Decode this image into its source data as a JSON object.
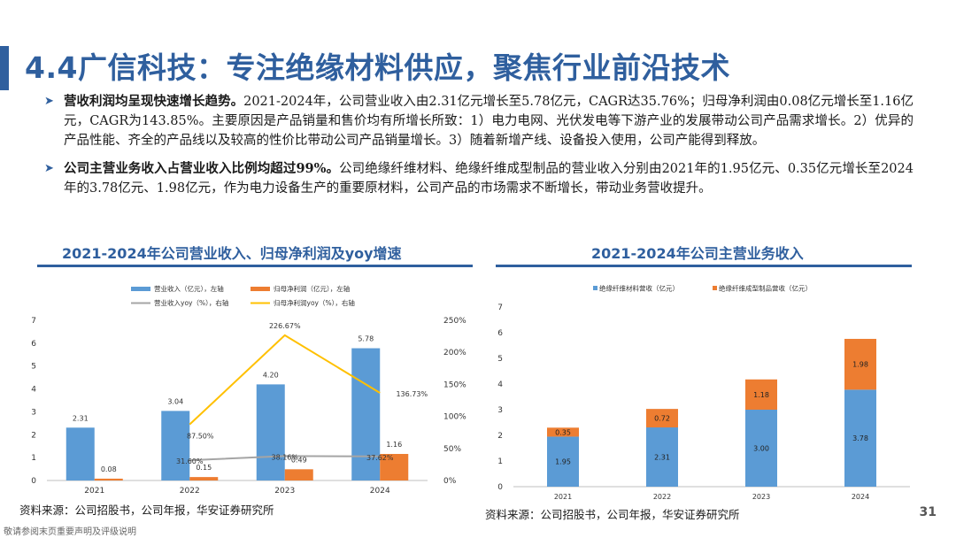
{
  "slide": {
    "title": "4.4广信科技：专注绝缘材料供应，聚焦行业前沿技术",
    "page_number": "31",
    "footer_note": "敬请参阅末页重要声明及评级说明"
  },
  "bullets": [
    {
      "head": "营收利润均呈现快速增长趋势。",
      "body": "2021-2024年，公司营业收入由2.31亿元增长至5.78亿元，CAGR达35.76%；归母净利润由0.08亿元增长至1.16亿元，CAGR为143.85%。主要原因是产品销量和售价均有所增长所致：1）电力电网、光伏发电等下游产业的发展带动公司产品需求增长。2）优异的产品性能、齐全的产品线以及较高的性价比带动公司产品销量增长。3）随着新增产线、设备投入使用，公司产能得到释放。"
    },
    {
      "head": "公司主营业务收入占营业收入比例均超过99%。",
      "body": "公司绝缘纤维材料、绝缘纤维成型制品的营业收入分别由2021年的1.95亿元、0.35亿元增长至2024年的3.78亿元、1.98亿元，作为电力设备生产的重要原材料，公司产品的市场需求不断增长，带动业务营收提升。"
    }
  ],
  "charts": {
    "left_title": "2021-2024年公司营业收入、归母净利润及yoy增速",
    "right_title": "2021-2024年公司主营业务收入",
    "left_source": "资料来源：公司招股书，公司年报，华安证券研究所",
    "right_source": "资料来源：公司招股书，公司年报，华安证券研究所"
  },
  "chart_data": [
    {
      "type": "bar",
      "categories": [
        "2021",
        "2022",
        "2023",
        "2024"
      ],
      "series": [
        {
          "name": "营业收入（亿元），左轴",
          "kind": "bar",
          "axis": "left",
          "color": "#5b9bd5",
          "values": [
            2.31,
            3.04,
            4.2,
            5.78
          ],
          "labels": [
            "2.31",
            "3.04",
            "4.20",
            "5.78"
          ]
        },
        {
          "name": "归母净利润（亿元），左轴",
          "kind": "bar",
          "axis": "left",
          "color": "#ed7d31",
          "values": [
            0.08,
            0.15,
            0.49,
            1.16
          ],
          "labels": [
            "0.08",
            "0.15",
            "0.49",
            "1.16"
          ]
        },
        {
          "name": "营业收入yoy（%），右轴",
          "kind": "line",
          "axis": "right",
          "color": "#a5a5a5",
          "values": [
            null,
            31.6,
            38.16,
            37.62
          ],
          "labels": [
            "",
            "31.60%",
            "38.16%",
            "37.62%"
          ]
        },
        {
          "name": "归母净利润yoy（%），右轴",
          "kind": "line",
          "axis": "right",
          "color": "#ffc000",
          "values": [
            null,
            87.5,
            226.67,
            136.73
          ],
          "labels": [
            "",
            "87.50%",
            "226.67%",
            "136.73%"
          ]
        }
      ],
      "ylim": [
        0,
        7
      ],
      "yticks": [
        "0",
        "1",
        "2",
        "3",
        "4",
        "5",
        "6",
        "7"
      ],
      "y2lim": [
        0,
        250
      ],
      "y2ticks": [
        "0%",
        "50%",
        "100%",
        "150%",
        "200%",
        "250%"
      ],
      "legend": "top"
    },
    {
      "type": "bar",
      "stacked": true,
      "categories": [
        "2021",
        "2022",
        "2023",
        "2024"
      ],
      "series": [
        {
          "name": "绝缘纤维材料营收（亿元）",
          "color": "#5b9bd5",
          "values": [
            1.95,
            2.31,
            3.0,
            3.78
          ],
          "labels": [
            "1.95",
            "2.31",
            "3.00",
            "3.78"
          ]
        },
        {
          "name": "绝缘纤维成型制品营收（亿元）",
          "color": "#ed7d31",
          "values": [
            0.35,
            0.72,
            1.18,
            1.98
          ],
          "labels": [
            "0.35",
            "0.72",
            "1.18",
            "1.98"
          ]
        }
      ],
      "ylim": [
        0,
        7
      ],
      "yticks": [
        "0",
        "1",
        "2",
        "3",
        "4",
        "5",
        "6",
        "7"
      ],
      "legend": "top"
    }
  ]
}
